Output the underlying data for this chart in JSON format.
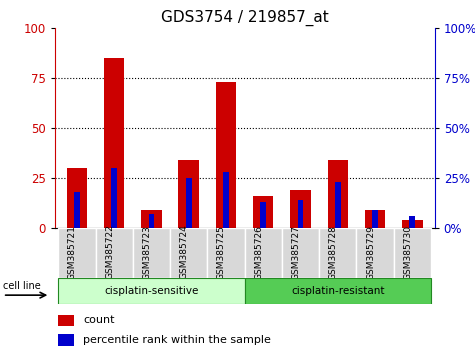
{
  "title": "GDS3754 / 219857_at",
  "samples": [
    "GSM385721",
    "GSM385722",
    "GSM385723",
    "GSM385724",
    "GSM385725",
    "GSM385726",
    "GSM385727",
    "GSM385728",
    "GSM385729",
    "GSM385730"
  ],
  "count_values": [
    30,
    85,
    9,
    34,
    73,
    16,
    19,
    34,
    9,
    4
  ],
  "percentile_values": [
    18,
    30,
    7,
    25,
    28,
    13,
    14,
    23,
    9,
    6
  ],
  "group1_label": "cisplatin-sensitive",
  "group2_label": "cisplatin-resistant",
  "group1_samples": 5,
  "group2_samples": 5,
  "cell_line_label": "cell line",
  "legend_count": "count",
  "legend_percentile": "percentile rank within the sample",
  "ylim": [
    0,
    100
  ],
  "yticks": [
    0,
    25,
    50,
    75,
    100
  ],
  "bar_color": "#cc0000",
  "percentile_color": "#0000cc",
  "grid_color": "#000000",
  "group1_bg": "#ccffcc",
  "group2_bg": "#55cc55",
  "label_bg": "#d8d8d8",
  "title_fontsize": 11,
  "bar_width": 0.55
}
